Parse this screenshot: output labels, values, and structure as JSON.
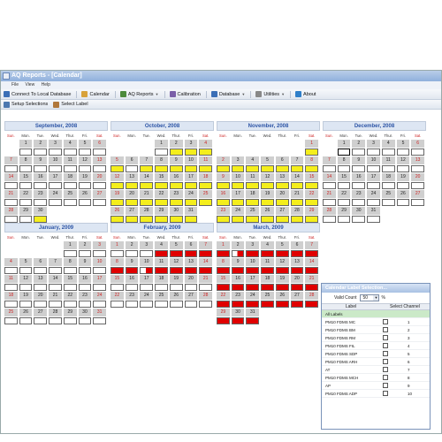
{
  "window": {
    "title": "AQ Reports - [Calendar]"
  },
  "menu": [
    "File",
    "View",
    "Help"
  ],
  "toolbar1": [
    {
      "label": "Connect To Local Database",
      "icon": "database-icon",
      "color": "#3b6fb6",
      "dropdown": false
    },
    {
      "label": "Calendar",
      "icon": "calendar-icon",
      "color": "#d8a23a",
      "dropdown": false
    },
    {
      "label": "AQ Reports",
      "icon": "report-icon",
      "color": "#4d8b3c",
      "dropdown": true
    },
    {
      "label": "Calibration",
      "icon": "calibration-icon",
      "color": "#7a5fa8",
      "dropdown": false
    },
    {
      "label": "Database",
      "icon": "database-icon",
      "color": "#3b6fb6",
      "dropdown": true
    },
    {
      "label": "Utilities",
      "icon": "gear-icon",
      "color": "#888888",
      "dropdown": true
    },
    {
      "label": "About",
      "icon": "info-icon",
      "color": "#2f7fc9",
      "dropdown": false
    }
  ],
  "toolbar2": [
    {
      "label": "Setup Selections",
      "icon": "setup-icon",
      "color": "#4b78b0"
    },
    {
      "label": "Select Label",
      "icon": "label-icon",
      "color": "#b0773a"
    }
  ],
  "dows": [
    "Sun.",
    "Mon.",
    "Tue.",
    "Wed.",
    "Thur.",
    "Fri.",
    "Sat."
  ],
  "months": [
    {
      "name": "September, 2008",
      "weeks": [
        [
          "",
          "1",
          "2",
          "3",
          "4",
          "5",
          "6"
        ],
        [
          "7",
          "8",
          "9",
          "10",
          "11",
          "12",
          "13"
        ],
        [
          "14",
          "15",
          "16",
          "17",
          "18",
          "19",
          "20"
        ],
        [
          "21",
          "22",
          "23",
          "24",
          "25",
          "26",
          "27"
        ],
        [
          "28",
          "29",
          "30",
          "",
          "",
          "",
          ""
        ]
      ],
      "status": [
        [
          "",
          "w",
          "w",
          "w",
          "w",
          "w",
          "w"
        ],
        [
          "w",
          "w",
          "w",
          "w",
          "w",
          "w",
          "w"
        ],
        [
          "w",
          "w",
          "w",
          "w",
          "w",
          "w",
          "w"
        ],
        [
          "w",
          "w",
          "w",
          "w",
          "w",
          "w",
          "w"
        ],
        [
          "w",
          "w",
          "y",
          "",
          "",
          "",
          ""
        ]
      ]
    },
    {
      "name": "October, 2008",
      "weeks": [
        [
          "",
          "",
          "",
          "1",
          "2",
          "3",
          "4"
        ],
        [
          "5",
          "6",
          "7",
          "8",
          "9",
          "10",
          "11"
        ],
        [
          "12",
          "13",
          "14",
          "15",
          "16",
          "17",
          "18"
        ],
        [
          "19",
          "20",
          "21",
          "22",
          "23",
          "24",
          "25"
        ],
        [
          "26",
          "27",
          "28",
          "29",
          "30",
          "31",
          ""
        ]
      ],
      "status": [
        [
          "",
          "",
          "",
          "w",
          "y",
          "y",
          "y"
        ],
        [
          "y",
          "w",
          "y",
          "y",
          "y",
          "y",
          "y"
        ],
        [
          "y",
          "y",
          "y",
          "y",
          "y",
          "y",
          "y"
        ],
        [
          "y",
          "y",
          "y",
          "y",
          "y",
          "y",
          "y"
        ],
        [
          "y",
          "y",
          "y",
          "y",
          "y",
          "y",
          ""
        ]
      ]
    },
    {
      "name": "November, 2008",
      "weeks": [
        [
          "",
          "",
          "",
          "",
          "",
          "",
          "1"
        ],
        [
          "2",
          "3",
          "4",
          "5",
          "6",
          "7",
          "8"
        ],
        [
          "9",
          "10",
          "11",
          "12",
          "13",
          "14",
          "15"
        ],
        [
          "16",
          "17",
          "18",
          "19",
          "20",
          "21",
          "22"
        ],
        [
          "23",
          "24",
          "25",
          "26",
          "27",
          "28",
          "29"
        ],
        [
          "30",
          "",
          "",
          "",
          "",
          "",
          ""
        ]
      ],
      "status": [
        [
          "",
          "",
          "",
          "",
          "",
          "",
          "y"
        ],
        [
          "y",
          "y",
          "y",
          "y",
          "y",
          "y",
          "y"
        ],
        [
          "y",
          "y",
          "y",
          "y",
          "y",
          "y",
          "y"
        ],
        [
          "y",
          "y",
          "y",
          "y",
          "y",
          "y",
          "y"
        ],
        [
          "y",
          "y",
          "y",
          "y",
          "y",
          "y",
          "y"
        ],
        [
          "w",
          "",
          "",
          "",
          "",
          "",
          ""
        ]
      ]
    },
    {
      "name": "December, 2008",
      "weeks": [
        [
          "",
          "1",
          "2",
          "3",
          "4",
          "5",
          "6"
        ],
        [
          "7",
          "8",
          "9",
          "10",
          "11",
          "12",
          "13"
        ],
        [
          "14",
          "15",
          "16",
          "17",
          "18",
          "19",
          "20"
        ],
        [
          "21",
          "22",
          "23",
          "24",
          "25",
          "26",
          "27"
        ],
        [
          "28",
          "29",
          "30",
          "31",
          "",
          "",
          ""
        ]
      ],
      "status": [
        [
          "",
          "sel",
          "w",
          "w",
          "w",
          "w",
          "w"
        ],
        [
          "w",
          "w",
          "w",
          "w",
          "w",
          "w",
          "w"
        ],
        [
          "w",
          "w",
          "w",
          "w",
          "w",
          "w",
          "w"
        ],
        [
          "w",
          "w",
          "w",
          "w",
          "w",
          "w",
          "w"
        ],
        [
          "w",
          "w",
          "w",
          "w",
          "",
          "",
          ""
        ]
      ]
    },
    {
      "name": "January, 2009",
      "weeks": [
        [
          "",
          "",
          "",
          "",
          "1",
          "2",
          "3"
        ],
        [
          "4",
          "5",
          "6",
          "7",
          "8",
          "9",
          "10"
        ],
        [
          "11",
          "12",
          "13",
          "14",
          "15",
          "16",
          "17"
        ],
        [
          "18",
          "19",
          "20",
          "21",
          "22",
          "23",
          "24"
        ],
        [
          "25",
          "26",
          "27",
          "28",
          "29",
          "30",
          "31"
        ]
      ],
      "status": [
        [
          "",
          "",
          "",
          "",
          "w",
          "w",
          "w"
        ],
        [
          "w",
          "w",
          "w",
          "w",
          "w",
          "w",
          "w"
        ],
        [
          "w",
          "w",
          "w",
          "w",
          "w",
          "w",
          "w"
        ],
        [
          "w",
          "w",
          "w",
          "w",
          "w",
          "w",
          "w"
        ],
        [
          "w",
          "w",
          "w",
          "w",
          "w",
          "w",
          "w"
        ]
      ]
    },
    {
      "name": "February, 2009",
      "weeks": [
        [
          "1",
          "2",
          "3",
          "4",
          "5",
          "6",
          "7"
        ],
        [
          "8",
          "9",
          "10",
          "11",
          "12",
          "13",
          "14"
        ],
        [
          "15",
          "16",
          "17",
          "18",
          "19",
          "20",
          "21"
        ],
        [
          "22",
          "23",
          "24",
          "25",
          "26",
          "27",
          "28"
        ]
      ],
      "status": [
        [
          "w",
          "w",
          "w",
          "r",
          "r",
          "r",
          "r"
        ],
        [
          "r",
          "r",
          "h",
          "r",
          "r",
          "r",
          "r"
        ],
        [
          "w",
          "w",
          "w",
          "w",
          "w",
          "w",
          "w"
        ],
        [
          "w",
          "w",
          "w",
          "w",
          "w",
          "w",
          "w"
        ]
      ]
    },
    {
      "name": "March, 2009",
      "weeks": [
        [
          "1",
          "2",
          "3",
          "4",
          "5",
          "6",
          "7"
        ],
        [
          "8",
          "9",
          "10",
          "11",
          "12",
          "13",
          "14"
        ],
        [
          "15",
          "16",
          "17",
          "18",
          "19",
          "20",
          "21"
        ],
        [
          "22",
          "23",
          "24",
          "25",
          "26",
          "27",
          "28"
        ],
        [
          "29",
          "30",
          "31",
          "",
          "",
          "",
          ""
        ]
      ],
      "status": [
        [
          "r",
          "h",
          "r",
          "r",
          "r",
          "r",
          "r"
        ],
        [
          "r",
          "r",
          "r",
          "r",
          "r",
          "r",
          "r"
        ],
        [
          "r",
          "r",
          "r",
          "r",
          "r",
          "r",
          "r"
        ],
        [
          "r",
          "r",
          "r",
          "r",
          "r",
          "r",
          "r"
        ],
        [
          "r",
          "r",
          "r",
          "",
          "",
          "",
          ""
        ]
      ]
    }
  ],
  "status_colors": {
    "y": "#f4ee1c",
    "r": "#e00000",
    "w": "#ffffff"
  },
  "dialog": {
    "title": "Calendar Label Selection...",
    "valid_count_label": "Valid Count",
    "valid_count_value": "50",
    "percent": "%",
    "col_label": "Label",
    "col_channel": "Select Channel",
    "rows": [
      {
        "label": "All Labels",
        "channel": "",
        "highlight": true,
        "checkbox": false
      },
      {
        "label": "PM10 FDMS MC",
        "channel": "1",
        "highlight": false,
        "checkbox": true
      },
      {
        "label": "PM10 FDMS BM",
        "channel": "2",
        "highlight": false,
        "checkbox": true
      },
      {
        "label": "PM10 FDMS RM",
        "channel": "3",
        "highlight": false,
        "checkbox": true
      },
      {
        "label": "PM10 FDMS FIL",
        "channel": "4",
        "highlight": false,
        "checkbox": true
      },
      {
        "label": "PM10 FDMS SDP",
        "channel": "5",
        "highlight": false,
        "checkbox": true
      },
      {
        "label": "PM10 FDMS ARH",
        "channel": "6",
        "highlight": false,
        "checkbox": true
      },
      {
        "label": "AT",
        "channel": "7",
        "highlight": false,
        "checkbox": true
      },
      {
        "label": "PM10 FDMS MCH",
        "channel": "8",
        "highlight": false,
        "checkbox": true
      },
      {
        "label": "AP",
        "channel": "9",
        "highlight": false,
        "checkbox": true
      },
      {
        "label": "PM10 FDMS ADP",
        "channel": "10",
        "highlight": false,
        "checkbox": true
      }
    ]
  }
}
